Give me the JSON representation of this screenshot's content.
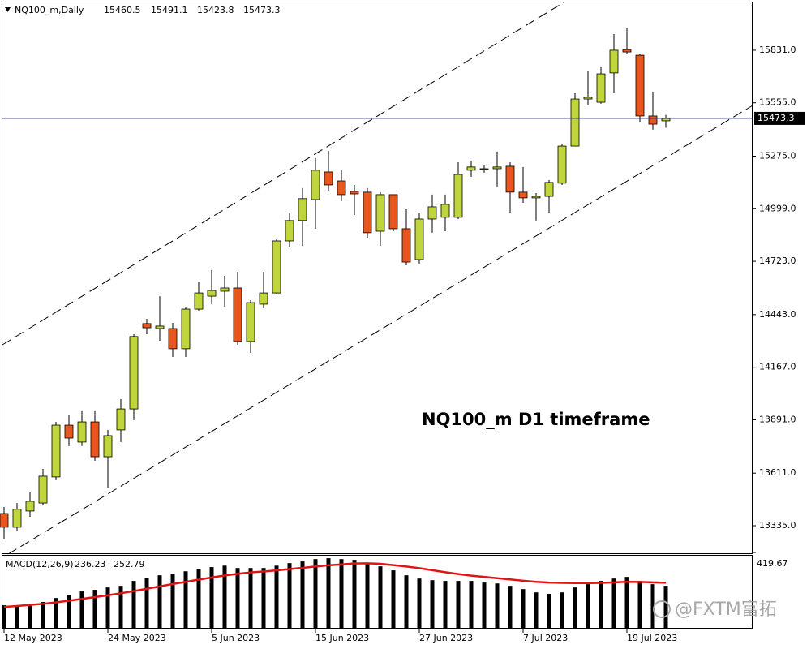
{
  "chart_data": [
    {
      "type": "candlestick",
      "title": "NQ100_m,Daily",
      "annotation": "NQ100_m D1 timeframe",
      "categories": [
        "12 May 2023",
        null,
        null,
        null,
        null,
        null,
        null,
        null,
        "24 May 2023",
        null,
        null,
        null,
        null,
        null,
        null,
        null,
        "5 Jun 2023",
        null,
        null,
        null,
        null,
        null,
        null,
        null,
        "15 Jun 2023",
        null,
        null,
        null,
        null,
        null,
        null,
        null,
        "27 Jun 2023",
        null,
        null,
        null,
        null,
        null,
        null,
        null,
        "7 Jul 2023",
        null,
        null,
        null,
        null,
        null,
        null,
        null,
        "19 Jul 2023",
        null,
        null,
        null
      ],
      "open": [
        13399,
        13327,
        13412,
        13454,
        13591,
        13863,
        13774,
        13880,
        13697,
        13838,
        13948,
        14396,
        14370,
        14370,
        14264,
        14472,
        14540,
        14566,
        14583,
        14302,
        14498,
        14557,
        14830,
        14937,
        15047,
        15192,
        15145,
        15090,
        15086,
        14881,
        15073,
        14894,
        14732,
        14945,
        14954,
        14954,
        15201,
        15205,
        15209,
        15222,
        15086,
        15056,
        15064,
        15133,
        15328,
        15575,
        15558,
        15712,
        15835,
        15805,
        15486,
        15460.5
      ],
      "high": [
        13433,
        13454,
        13510,
        13633,
        13880,
        13914,
        13936,
        13936,
        13838,
        14000,
        14340,
        14421,
        14540,
        14400,
        14485,
        14613,
        14677,
        14647,
        14668,
        14519,
        14668,
        14839,
        14979,
        15107,
        15265,
        15303,
        15201,
        15124,
        15107,
        15086,
        15073,
        14996,
        14979,
        15073,
        15073,
        15243,
        15252,
        15230,
        15299,
        15243,
        15218,
        15081,
        15150,
        15341,
        15605,
        15720,
        15746,
        15916,
        15946,
        15810,
        15614,
        15491.1
      ],
      "low": [
        13263,
        13306,
        13382,
        13446,
        13574,
        13753,
        13753,
        13676,
        13531,
        13774,
        13889,
        14340,
        14306,
        14221,
        14221,
        14464,
        14498,
        14485,
        14285,
        14242,
        14477,
        14549,
        14796,
        14804,
        14894,
        15094,
        15039,
        14966,
        14847,
        14804,
        14881,
        14702,
        14711,
        14873,
        14881,
        14945,
        15167,
        15188,
        15116,
        14979,
        15030,
        14937,
        14979,
        15124,
        15328,
        15541,
        15550,
        15605,
        15814,
        15456,
        15414,
        15423.8
      ],
      "close": [
        13327,
        13421,
        13463,
        13595,
        13863,
        13795,
        13880,
        13697,
        13808,
        13948,
        14328,
        14374,
        14383,
        14264,
        14472,
        14557,
        14570,
        14583,
        14302,
        14506,
        14557,
        14830,
        14937,
        15052,
        15201,
        15124,
        15073,
        15077,
        14873,
        15073,
        14894,
        14719,
        14945,
        15009,
        15022,
        15179,
        15218,
        15209,
        15218,
        15086,
        15056,
        15064,
        15137,
        15328,
        15575,
        15584,
        15707,
        15831,
        15822,
        15486,
        15443,
        15473.3
      ],
      "up_color": "#c0d43c",
      "down_color": "#e8561f",
      "price_line_color": "#1a237e",
      "ylim": [
        13186,
        16082
      ],
      "yticks": [
        {
          "value": 15831,
          "label": "15831.0"
        },
        {
          "value": 15555,
          "label": "15555.0"
        },
        {
          "value": 15275,
          "label": "15275.0"
        },
        {
          "value": 14999,
          "label": "14999.0"
        },
        {
          "value": 14723,
          "label": "14723.0"
        },
        {
          "value": 14443,
          "label": "14443.0"
        },
        {
          "value": 14167,
          "label": "14167.0"
        },
        {
          "value": 13891,
          "label": "13891.0"
        },
        {
          "value": 13611,
          "label": "13611.0"
        },
        {
          "value": 13335,
          "label": "13335.0"
        }
      ]
    },
    {
      "type": "macd",
      "title": "MACD(12,26,9)",
      "watermark": "@FXTM富拓",
      "values": [
        129,
        129,
        138,
        147,
        169,
        187,
        205,
        214,
        227,
        236,
        263,
        281,
        294,
        303,
        316,
        330,
        339,
        347,
        334,
        334,
        334,
        347,
        361,
        370,
        383,
        388,
        383,
        379,
        356,
        343,
        321,
        294,
        276,
        267,
        263,
        263,
        263,
        254,
        249,
        236,
        218,
        200,
        192,
        200,
        227,
        245,
        263,
        276,
        285,
        263,
        245,
        236.23
      ],
      "signal": [
        120,
        125,
        131,
        137,
        145,
        154,
        164,
        174,
        184,
        195,
        207,
        220,
        233,
        246,
        258,
        270,
        282,
        293,
        302,
        310,
        315,
        321,
        328,
        335,
        342,
        349,
        354,
        359,
        360,
        357,
        350,
        342,
        333,
        322,
        311,
        301,
        292,
        285,
        278,
        271,
        264,
        258,
        254,
        252,
        251,
        251,
        252,
        255,
        258,
        257,
        255,
        252.79
      ],
      "color": "#000000",
      "signal_color": "#e01414",
      "ylim": [
        0,
        419.67
      ],
      "yticks": [
        419.67
      ]
    }
  ]
}
